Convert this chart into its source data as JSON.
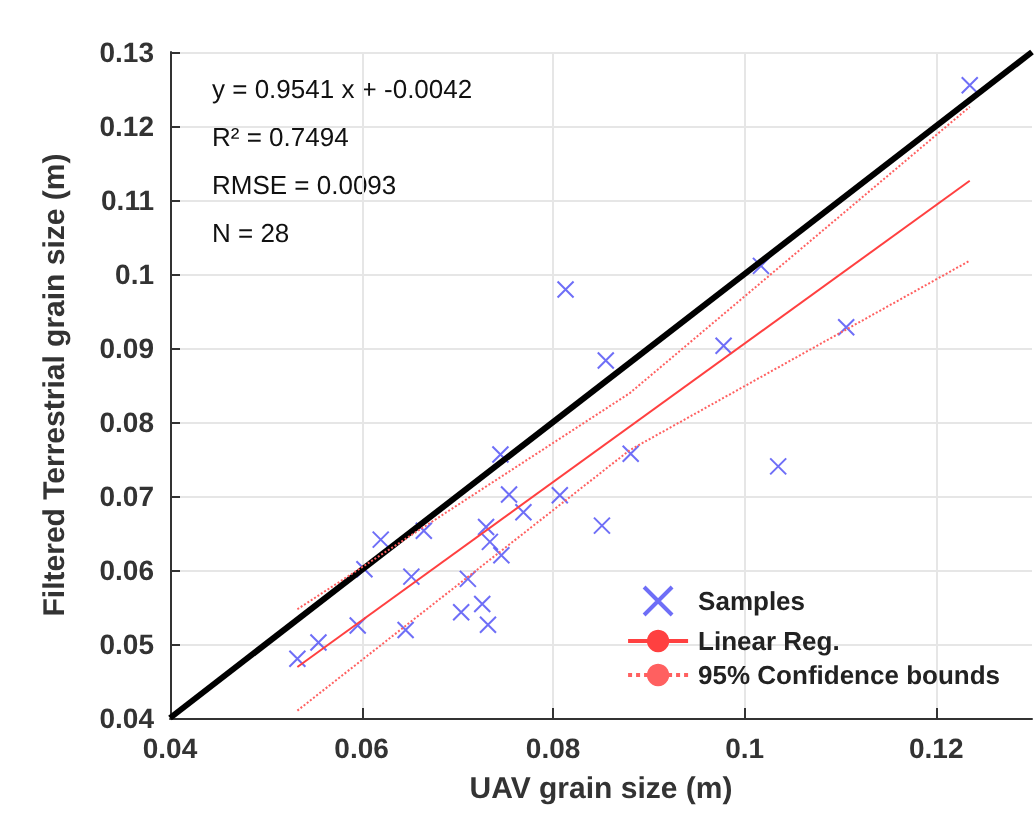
{
  "chart_data": {
    "type": "scatter",
    "xlabel": "UAV grain size (m)",
    "ylabel": "Filtered Terrestrial grain size (m)",
    "annotations": [
      "y = 0.9541 x + -0.0042",
      "R² = 0.7494",
      "RMSE = 0.0093",
      "N = 28"
    ],
    "xlim": [
      0.04,
      0.13
    ],
    "ylim": [
      0.04,
      0.13
    ],
    "xticks": [
      0.04,
      0.06,
      0.08,
      0.1,
      0.12
    ],
    "yticks": [
      0.04,
      0.05,
      0.06,
      0.07,
      0.08,
      0.09,
      0.1,
      0.11,
      0.12,
      0.13
    ],
    "grid": true,
    "legend": "bottom right",
    "series": [
      {
        "type": "line",
        "color": "#000000",
        "marker": "none",
        "line_style": "solid",
        "x": [
          0.04,
          0.13
        ],
        "values": [
          0.04,
          0.13
        ]
      },
      {
        "name": "Samples",
        "color": "#4a4af5",
        "marker": "cross",
        "x": [
          0.0533,
          0.0555,
          0.0596,
          0.0603,
          0.062,
          0.0646,
          0.0652,
          0.0665,
          0.0704,
          0.0711,
          0.0726,
          0.0732,
          0.073,
          0.0734,
          0.0746,
          0.0745,
          0.0754,
          0.0769,
          0.0807,
          0.0813,
          0.0855,
          0.0851,
          0.0881,
          0.0978,
          0.1017,
          0.1035,
          0.1106,
          0.1235
        ],
        "values": [
          0.048,
          0.0502,
          0.0525,
          0.0601,
          0.0641,
          0.0519,
          0.0591,
          0.0653,
          0.0543,
          0.0588,
          0.0554,
          0.0526,
          0.0658,
          0.0638,
          0.062,
          0.0756,
          0.0702,
          0.0678,
          0.0701,
          0.0979,
          0.0883,
          0.066,
          0.0757,
          0.0903,
          0.1011,
          0.074,
          0.0928,
          0.1255
        ]
      },
      {
        "type": "line",
        "name": "Linear Reg.",
        "color": "#ff4040",
        "marker": "none",
        "line_style": "solid",
        "x": [
          0.0533,
          0.1235
        ],
        "values": [
          0.0469,
          0.1126
        ]
      },
      {
        "type": "line",
        "name": "95% Confidence bounds",
        "color": "#ff6060",
        "marker": "none",
        "line_style": "dotted",
        "x": [
          0.0533,
          0.088,
          0.1235
        ],
        "values": [
          0.0547,
          0.0839,
          0.1226
        ]
      },
      {
        "type": "line",
        "color": "#ff6060",
        "marker": "none",
        "line_style": "dotted",
        "x": [
          0.0533,
          0.088,
          0.1235
        ],
        "values": [
          0.041,
          0.0762,
          0.1018
        ]
      }
    ]
  }
}
